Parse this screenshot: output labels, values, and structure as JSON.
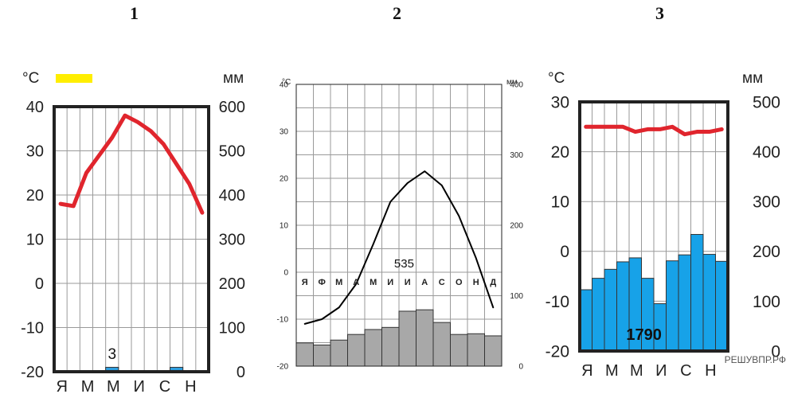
{
  "panels": [
    {
      "label": "1"
    },
    {
      "label": "2"
    },
    {
      "label": "3"
    }
  ],
  "watermark": "РЕШУВПР.РФ",
  "colors": {
    "temp_line_1": "#e0252d",
    "temp_line_2": "#000000",
    "temp_line_3": "#e0252d",
    "precip_bar_1": "#2e9fe0",
    "precip_bar_2": "#a8a8a8",
    "precip_bar_3": "#17a2e8",
    "highlight": "#ffee00"
  },
  "chart_data": [
    {
      "type": "bar+line",
      "title": "1",
      "y_left_unit": "°C",
      "y_right_unit": "мм",
      "y_left_ticks": [
        "40",
        "30",
        "20",
        "10",
        "0",
        "-10",
        "-20"
      ],
      "y_right_ticks": [
        "600",
        "500",
        "400",
        "300",
        "200",
        "100",
        "0"
      ],
      "ylim_temp": [
        -20,
        40
      ],
      "ylim_precip": [
        0,
        600
      ],
      "x_labels": [
        "Я",
        "М",
        "М",
        "И",
        "С",
        "Н"
      ],
      "months": 12,
      "temperature": [
        18,
        17.5,
        25,
        29,
        33,
        38,
        36.5,
        34.5,
        31.5,
        27,
        22.5,
        16
      ],
      "precipitation": [
        0,
        0,
        0,
        0,
        10,
        0,
        0,
        0,
        0,
        10,
        0,
        0
      ],
      "annotation": "3",
      "grid": true
    },
    {
      "type": "bar+line",
      "title": "2",
      "y_left_unit": "°C",
      "y_right_unit": "мм",
      "y_left_ticks": [
        "40",
        "30",
        "20",
        "10",
        "0",
        "-10",
        "-20"
      ],
      "y_right_ticks": [
        "400",
        "300",
        "200",
        "100",
        "0"
      ],
      "ylim_temp": [
        -20,
        40
      ],
      "ylim_precip": [
        0,
        400
      ],
      "x_labels": [
        "Я",
        "Ф",
        "М",
        "А",
        "М",
        "И",
        "И",
        "А",
        "С",
        "О",
        "Н",
        "Д"
      ],
      "months": 12,
      "temperature": [
        -11,
        -10,
        -7.5,
        -2.5,
        6,
        15,
        19,
        21.5,
        18.5,
        12,
        3,
        -7.5
      ],
      "precipitation": [
        33,
        30,
        37,
        45,
        52,
        55,
        78,
        80,
        62,
        45,
        46,
        43
      ],
      "annotation": "535",
      "grid": true
    },
    {
      "type": "bar+line",
      "title": "3",
      "y_left_unit": "°C",
      "y_right_unit": "мм",
      "y_left_ticks": [
        "30",
        "20",
        "10",
        "0",
        "-10",
        "-20"
      ],
      "y_right_ticks": [
        "500",
        "400",
        "300",
        "200",
        "100",
        "0"
      ],
      "ylim_temp": [
        -20,
        30
      ],
      "ylim_precip": [
        0,
        500
      ],
      "x_labels": [
        "Я",
        "М",
        "М",
        "И",
        "С",
        "Н"
      ],
      "months": 12,
      "temperature": [
        25,
        25,
        25,
        25,
        24,
        24.5,
        24.5,
        25,
        23.5,
        24,
        24,
        24.5
      ],
      "precipitation": [
        123,
        146,
        164,
        179,
        187,
        146,
        95,
        181,
        193,
        234,
        194,
        180
      ],
      "annotation": "1790",
      "grid": true
    }
  ]
}
